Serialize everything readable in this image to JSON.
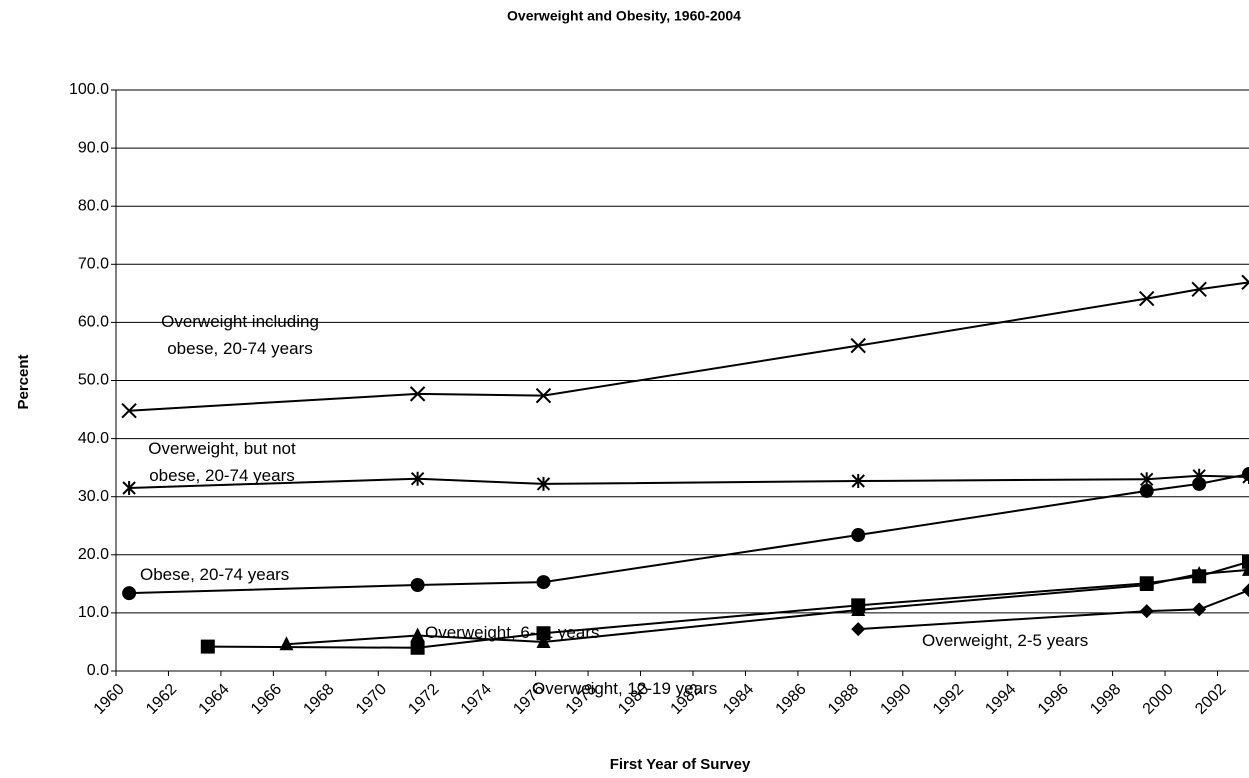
{
  "chart_data": {
    "type": "line",
    "title": "Overweight and Obesity, 1960-2004",
    "x_label": "First Year of Survey",
    "y_label": "Percent",
    "xlim": [
      1960,
      2003.2
    ],
    "ylim": [
      0,
      100
    ],
    "xticks": [
      1960,
      1962,
      1964,
      1966,
      1968,
      1970,
      1972,
      1974,
      1976,
      1978,
      1980,
      1982,
      1984,
      1986,
      1988,
      1990,
      1992,
      1994,
      1996,
      1998,
      2000,
      2002
    ],
    "yticks": [
      {
        "value": 0,
        "label": "0.0"
      },
      {
        "value": 10,
        "label": "10.0"
      },
      {
        "value": 20,
        "label": "20.0"
      },
      {
        "value": 30,
        "label": "30.0"
      },
      {
        "value": 40,
        "label": "40.0"
      },
      {
        "value": 50,
        "label": "50.0"
      },
      {
        "value": 60,
        "label": "60.0"
      },
      {
        "value": 70,
        "label": "70.0"
      },
      {
        "value": 80,
        "label": "80.0"
      },
      {
        "value": 90,
        "label": "90.0"
      },
      {
        "value": 100,
        "label": "100.0"
      }
    ],
    "grid": true,
    "series": [
      {
        "name": "Overweight including obese, 20-74 years",
        "color": "#000000",
        "marker": "x",
        "x": [
          1960.5,
          1971.5,
          1976.3,
          1988.3,
          1999.3,
          2001.3,
          2003.2
        ],
        "values": [
          44.8,
          47.7,
          47.4,
          56.0,
          64.1,
          65.7,
          66.9
        ]
      },
      {
        "name": "Overweight, but not obese, 20-74 years",
        "color": "#000000",
        "marker": "asterisk",
        "x": [
          1960.5,
          1971.5,
          1976.3,
          1988.3,
          1999.3,
          2001.3,
          2003.2
        ],
        "values": [
          31.5,
          33.1,
          32.2,
          32.7,
          33.0,
          33.6,
          33.4
        ]
      },
      {
        "name": "Obese, 20-74 years",
        "color": "#000000",
        "marker": "circle",
        "x": [
          1960.5,
          1971.5,
          1976.3,
          1988.3,
          1999.3,
          2001.3,
          2003.2
        ],
        "values": [
          13.4,
          14.8,
          15.3,
          23.4,
          31.0,
          32.2,
          33.9
        ]
      },
      {
        "name": "Overweight, 6-11 years",
        "color": "#000000",
        "marker": "square",
        "x": [
          1963.5,
          1971.5,
          1976.3,
          1988.3,
          1999.3,
          2001.3,
          2003.2
        ],
        "values": [
          4.2,
          4.0,
          6.5,
          11.3,
          15.1,
          16.3,
          18.8
        ]
      },
      {
        "name": "Overweight, 12-19 years",
        "color": "#000000",
        "marker": "triangle",
        "x": [
          1966.5,
          1971.5,
          1976.3,
          1988.3,
          1999.3,
          2001.3,
          2003.2
        ],
        "values": [
          4.6,
          6.1,
          5.0,
          10.5,
          14.8,
          16.7,
          17.4
        ]
      },
      {
        "name": "Overweight, 2-5 years",
        "color": "#000000",
        "marker": "diamond",
        "x": [
          1988.3,
          1999.3,
          2001.3,
          2003.2
        ],
        "values": [
          7.2,
          10.3,
          10.6,
          13.9
        ]
      }
    ]
  }
}
